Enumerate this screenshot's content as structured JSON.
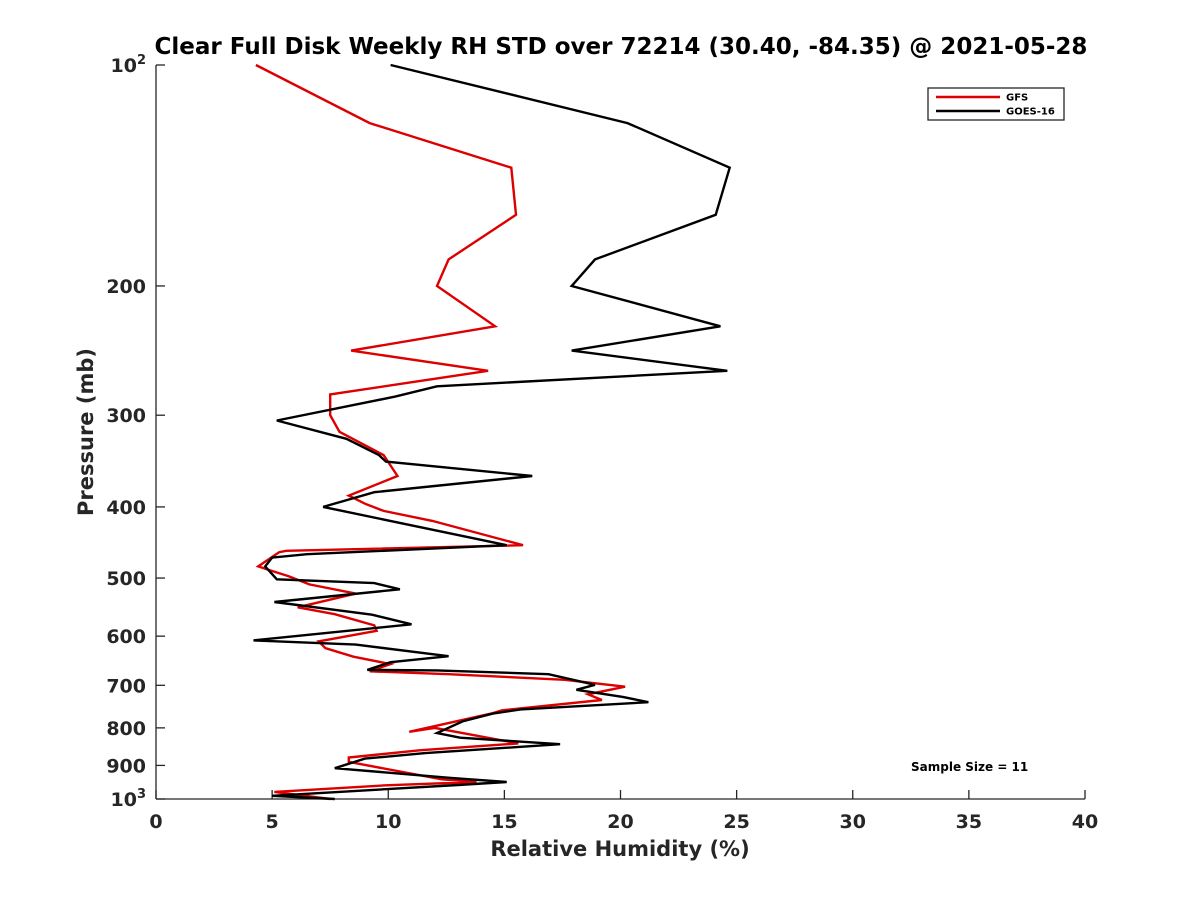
{
  "chart_data": {
    "type": "line",
    "title": "Clear Full Disk Weekly RH STD over 72214 (30.40, -84.35) @ 2021-05-28",
    "xlabel": "Relative Humidity (%)",
    "ylabel": "Pressure (mb)",
    "xlim": [
      0,
      40
    ],
    "ylim": [
      100,
      1000
    ],
    "yscale": "log",
    "y_reversed": true,
    "x_ticks": [
      0,
      5,
      10,
      15,
      20,
      25,
      30,
      35,
      40
    ],
    "x_tick_labels": [
      "0",
      "5",
      "10",
      "15",
      "20",
      "25",
      "30",
      "35",
      "40"
    ],
    "y_ticks": [
      200,
      300,
      400,
      500,
      600,
      700,
      800,
      900
    ],
    "y_tick_labels": [
      "200",
      "300",
      "400",
      "500",
      "600",
      "700",
      "800",
      "900"
    ],
    "y_end_labels": [
      {
        "value": 100,
        "base": "10",
        "exp": "2"
      },
      {
        "value": 1000,
        "base": "10",
        "exp": "3"
      }
    ],
    "legend_position": "top-right",
    "annotation": "Sample Size = 11",
    "series": [
      {
        "name": "GFS",
        "color": "#dd0000",
        "points": [
          [
            4.3,
            100
          ],
          [
            9.2,
            120
          ],
          [
            15.3,
            138
          ],
          [
            15.5,
            160
          ],
          [
            12.6,
            184
          ],
          [
            12.1,
            200
          ],
          [
            14.6,
            227
          ],
          [
            8.4,
            245
          ],
          [
            14.3,
            261
          ],
          [
            7.5,
            281
          ],
          [
            7.5,
            300
          ],
          [
            7.9,
            316
          ],
          [
            9.8,
            340
          ],
          [
            10.4,
            363
          ],
          [
            8.3,
            386
          ],
          [
            9.0,
            396
          ],
          [
            9.8,
            405
          ],
          [
            11.9,
            418
          ],
          [
            15.8,
            451
          ],
          [
            5.6,
            459
          ],
          [
            5.3,
            461
          ],
          [
            4.4,
            482
          ],
          [
            5.0,
            489
          ],
          [
            5.7,
            497
          ],
          [
            6.6,
            510
          ],
          [
            8.6,
            525
          ],
          [
            6.1,
            548
          ],
          [
            7.7,
            560
          ],
          [
            9.4,
            580
          ],
          [
            9.5,
            590
          ],
          [
            7.0,
            610
          ],
          [
            7.3,
            623
          ],
          [
            8.5,
            640
          ],
          [
            10.1,
            655
          ],
          [
            9.2,
            670
          ],
          [
            12.6,
            676
          ],
          [
            17.6,
            688
          ],
          [
            20.2,
            703
          ],
          [
            18.6,
            720
          ],
          [
            19.2,
            733
          ],
          [
            14.9,
            757
          ],
          [
            14.5,
            764
          ],
          [
            10.9,
            810
          ],
          [
            12.0,
            800
          ],
          [
            15.6,
            840
          ],
          [
            11.4,
            858
          ],
          [
            8.3,
            878
          ],
          [
            8.3,
            890
          ],
          [
            12.3,
            940
          ],
          [
            13.8,
            948
          ],
          [
            9.9,
            958
          ],
          [
            5.1,
            978
          ],
          [
            7.5,
            1000
          ]
        ]
      },
      {
        "name": "GOES-16",
        "color": "#000000",
        "points": [
          [
            10.1,
            100
          ],
          [
            20.3,
            120
          ],
          [
            24.7,
            138
          ],
          [
            24.1,
            160
          ],
          [
            18.9,
            184
          ],
          [
            17.9,
            200
          ],
          [
            24.3,
            227
          ],
          [
            17.9,
            245
          ],
          [
            24.6,
            261
          ],
          [
            12.1,
            274
          ],
          [
            10.3,
            283
          ],
          [
            5.2,
            305
          ],
          [
            8.2,
            323
          ],
          [
            9.6,
            340
          ],
          [
            9.9,
            347
          ],
          [
            16.2,
            363
          ],
          [
            9.4,
            382
          ],
          [
            7.2,
            400
          ],
          [
            15.1,
            451
          ],
          [
            6.5,
            464
          ],
          [
            5.0,
            469
          ],
          [
            4.7,
            482
          ],
          [
            5.2,
            502
          ],
          [
            9.4,
            508
          ],
          [
            10.5,
            518
          ],
          [
            5.1,
            539
          ],
          [
            9.3,
            561
          ],
          [
            11.0,
            578
          ],
          [
            4.2,
            608
          ],
          [
            8.6,
            616
          ],
          [
            12.6,
            639
          ],
          [
            10.1,
            651
          ],
          [
            9.1,
            667
          ],
          [
            12.1,
            668
          ],
          [
            16.9,
            676
          ],
          [
            18.9,
            699
          ],
          [
            18.1,
            710
          ],
          [
            20.1,
            726
          ],
          [
            21.2,
            738
          ],
          [
            15.7,
            755
          ],
          [
            14.5,
            765
          ],
          [
            13.2,
            784
          ],
          [
            12.1,
            813
          ],
          [
            13.1,
            825
          ],
          [
            17.4,
            842
          ],
          [
            11.6,
            866
          ],
          [
            9.0,
            881
          ],
          [
            7.7,
            908
          ],
          [
            12.7,
            936
          ],
          [
            15.1,
            948
          ],
          [
            13.0,
            957
          ],
          [
            5.0,
            990
          ],
          [
            7.7,
            1000
          ]
        ]
      }
    ]
  }
}
